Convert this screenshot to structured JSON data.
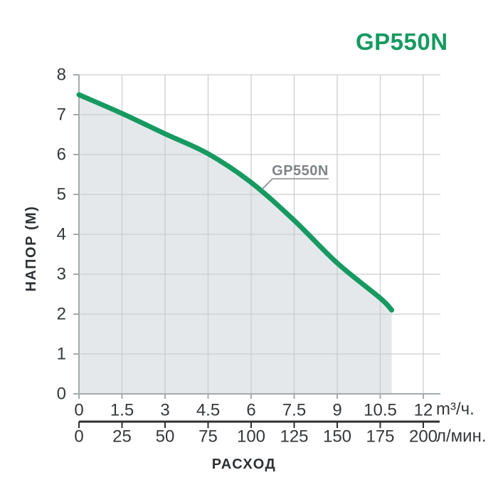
{
  "title": "GP550N",
  "chart_data": {
    "type": "area",
    "title": "GP550N",
    "curve_label": "GP550N",
    "xlabel": "РАСХОД",
    "ylabel": "НАПОР (М)",
    "x_axis_primary": {
      "unit": "m³/ч.",
      "min": 0,
      "max": 12,
      "ticks": [
        "0",
        "1.5",
        "3",
        "4.5",
        "6",
        "7.5",
        "9",
        "10.5",
        "12"
      ]
    },
    "x_axis_secondary": {
      "unit": "л/мин.",
      "min": 0,
      "max": 200,
      "ticks": [
        "0",
        "25",
        "50",
        "75",
        "100",
        "125",
        "150",
        "175",
        "200"
      ]
    },
    "y_axis": {
      "min": 0,
      "max": 8,
      "ticks": [
        "0",
        "1",
        "2",
        "3",
        "4",
        "5",
        "6",
        "7",
        "8"
      ]
    },
    "grid": "on",
    "series": [
      {
        "name": "GP550N",
        "points": [
          [
            0,
            7.5
          ],
          [
            1.5,
            7.03
          ],
          [
            3,
            6.52
          ],
          [
            4.5,
            6.02
          ],
          [
            6,
            5.3
          ],
          [
            7.5,
            4.35
          ],
          [
            9,
            3.28
          ],
          [
            10.5,
            2.4
          ],
          [
            10.9,
            2.1
          ]
        ]
      }
    ],
    "colors": {
      "curve": "#169A61",
      "title": "#169A61",
      "area_fill": "#E4E8EB",
      "grid_line": "#CBCED0",
      "axis_line": "#A5AAAD",
      "secondary_axis_line": "#2F2F2F",
      "tick_text": "#35383B",
      "curve_label_gray": "#7F8487"
    }
  }
}
